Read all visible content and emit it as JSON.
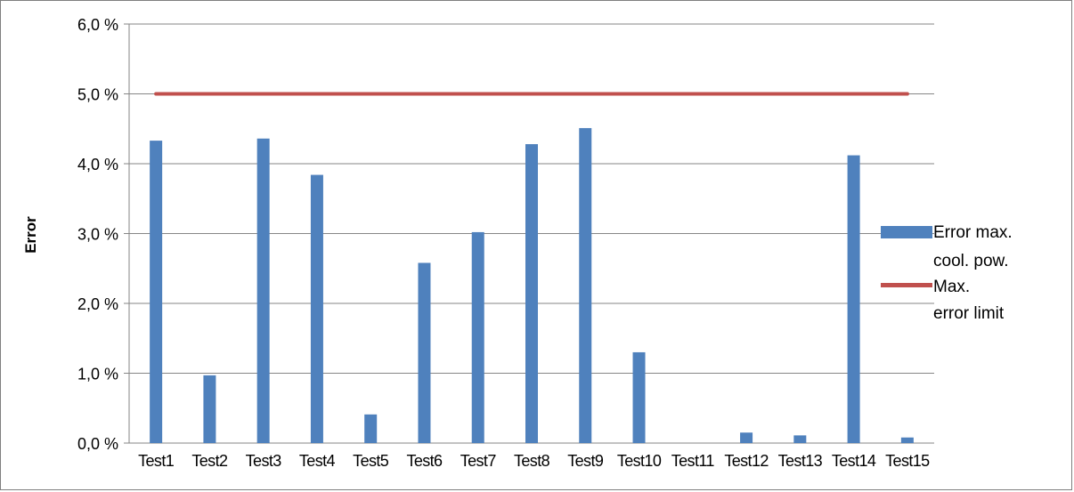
{
  "chart_data": {
    "type": "bar",
    "title": "",
    "xlabel": "",
    "ylabel": "Error",
    "ylim": [
      0,
      0.06
    ],
    "ytick_values": [
      0,
      0.01,
      0.02,
      0.03,
      0.04,
      0.05,
      0.06
    ],
    "yticks": [
      "0,0 %",
      "1,0 %",
      "2,0 %",
      "3,0 %",
      "4,0 %",
      "5,0 %",
      "6,0 %"
    ],
    "grid": true,
    "legend_position": "right",
    "categories": [
      "Test1",
      "Test2",
      "Test3",
      "Test4",
      "Test5",
      "Test6",
      "Test7",
      "Test8",
      "Test9",
      "Test10",
      "Test11",
      "Test12",
      "Test13",
      "Test14",
      "Test15"
    ],
    "series": [
      {
        "name": "Error max. cool. pow.",
        "kind": "bar",
        "color": "#4f81bd",
        "values": [
          0.0433,
          0.0097,
          0.0436,
          0.0384,
          0.0041,
          0.0258,
          0.0302,
          0.0428,
          0.0451,
          0.013,
          0.0,
          0.0015,
          0.0011,
          0.0412,
          0.0008
        ]
      },
      {
        "name": "Max. error limit",
        "kind": "line",
        "color": "#c0504d",
        "values": [
          0.05,
          0.05,
          0.05,
          0.05,
          0.05,
          0.05,
          0.05,
          0.05,
          0.05,
          0.05,
          0.05,
          0.05,
          0.05,
          0.05,
          0.05
        ]
      }
    ]
  },
  "legend": {
    "bar": {
      "line1": "Error max.",
      "line2": "cool. pow."
    },
    "line": {
      "line1": "Max.",
      "line2": "error limit"
    }
  }
}
